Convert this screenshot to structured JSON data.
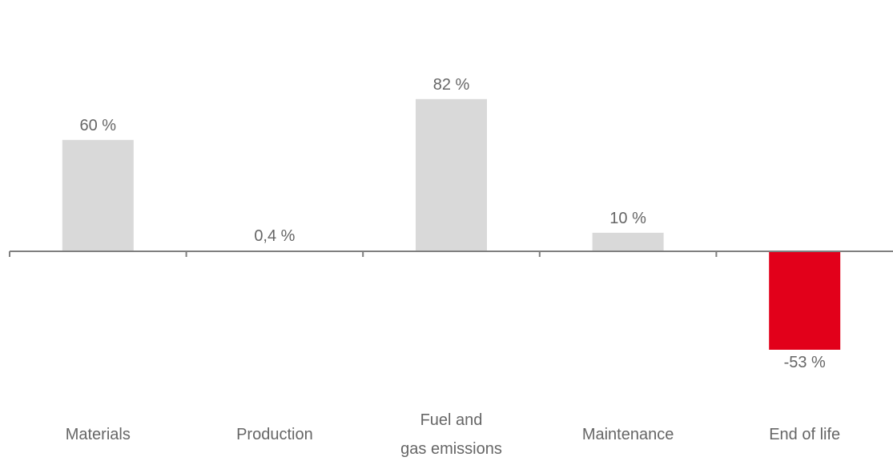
{
  "chart_data": {
    "type": "bar",
    "categories": [
      [
        "Materials"
      ],
      [
        "Production"
      ],
      [
        "Fuel and",
        "gas emissions"
      ],
      [
        "Maintenance"
      ],
      [
        "End of life"
      ]
    ],
    "values": [
      60,
      0.4,
      82,
      10,
      -53
    ],
    "data_labels": [
      "60 %",
      "0,4 %",
      "82 %",
      "10 %",
      "-53 %"
    ],
    "ylim": [
      -53,
      82
    ],
    "grid": false,
    "legend": "none",
    "colors": {
      "positive": "#d9d9d9",
      "negative": "#e2001a",
      "axis": "#7f7f7f",
      "text": "#666666"
    }
  }
}
